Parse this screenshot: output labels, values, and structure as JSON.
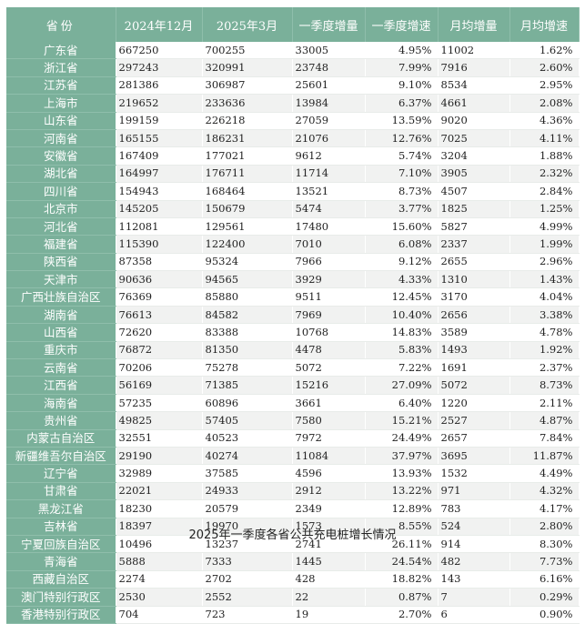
{
  "headers": [
    "省份",
    "2024年12月",
    "2025年3月",
    "一季度增量",
    "一季度增速",
    "月均增量",
    "月均增速"
  ],
  "rows": [
    [
      "广东省",
      "667250",
      "700255",
      "33005",
      "4.95%",
      "11002",
      "1.62%"
    ],
    [
      "浙江省",
      "297243",
      "320991",
      "23748",
      "7.99%",
      "7916",
      "2.60%"
    ],
    [
      "江苏省",
      "281386",
      "306987",
      "25601",
      "9.10%",
      "8534",
      "2.95%"
    ],
    [
      "上海市",
      "219652",
      "233636",
      "13984",
      "6.37%",
      "4661",
      "2.08%"
    ],
    [
      "山东省",
      "199159",
      "226218",
      "27059",
      "13.59%",
      "9020",
      "4.36%"
    ],
    [
      "河南省",
      "165155",
      "186231",
      "21076",
      "12.76%",
      "7025",
      "4.11%"
    ],
    [
      "安徽省",
      "167409",
      "177021",
      "9612",
      "5.74%",
      "3204",
      "1.88%"
    ],
    [
      "湖北省",
      "164997",
      "176711",
      "11714",
      "7.10%",
      "3905",
      "2.32%"
    ],
    [
      "四川省",
      "154943",
      "168464",
      "13521",
      "8.73%",
      "4507",
      "2.84%"
    ],
    [
      "北京市",
      "145205",
      "150679",
      "5474",
      "3.77%",
      "1825",
      "1.25%"
    ],
    [
      "河北省",
      "112081",
      "129561",
      "17480",
      "15.60%",
      "5827",
      "4.99%"
    ],
    [
      "福建省",
      "115390",
      "122400",
      "7010",
      "6.08%",
      "2337",
      "1.99%"
    ],
    [
      "陕西省",
      "87358",
      "95324",
      "7966",
      "9.12%",
      "2655",
      "2.96%"
    ],
    [
      "天津市",
      "90636",
      "94565",
      "3929",
      "4.33%",
      "1310",
      "1.43%"
    ],
    [
      "广西壮族自治区",
      "76369",
      "85880",
      "9511",
      "12.45%",
      "3170",
      "4.04%"
    ],
    [
      "湖南省",
      "76613",
      "84582",
      "7969",
      "10.40%",
      "2656",
      "3.38%"
    ],
    [
      "山西省",
      "72620",
      "83388",
      "10768",
      "14.83%",
      "3589",
      "4.78%"
    ],
    [
      "重庆市",
      "76872",
      "81350",
      "4478",
      "5.83%",
      "1493",
      "1.92%"
    ],
    [
      "云南省",
      "70206",
      "75278",
      "5072",
      "7.22%",
      "1691",
      "2.37%"
    ],
    [
      "江西省",
      "56169",
      "71385",
      "15216",
      "27.09%",
      "5072",
      "8.73%"
    ],
    [
      "海南省",
      "57235",
      "60896",
      "3661",
      "6.40%",
      "1220",
      "2.11%"
    ],
    [
      "贵州省",
      "49825",
      "57405",
      "7580",
      "15.21%",
      "2527",
      "4.87%"
    ],
    [
      "内蒙古自治区",
      "32551",
      "40523",
      "7972",
      "24.49%",
      "2657",
      "7.84%"
    ],
    [
      "新疆维吾尔自治区",
      "29190",
      "40274",
      "11084",
      "37.97%",
      "3695",
      "11.87%"
    ],
    [
      "辽宁省",
      "32989",
      "37585",
      "4596",
      "13.93%",
      "1532",
      "4.49%"
    ],
    [
      "甘肃省",
      "22021",
      "24933",
      "2912",
      "13.22%",
      "971",
      "4.32%"
    ],
    [
      "黑龙江省",
      "18230",
      "20579",
      "2349",
      "12.89%",
      "783",
      "4.17%"
    ],
    [
      "吉林省",
      "18397",
      "19970",
      "1573",
      "8.55%",
      "524",
      "2.80%"
    ],
    [
      "宁夏回族自治区",
      "10496",
      "13237",
      "2741",
      "26.11%",
      "914",
      "8.30%"
    ],
    [
      "青海省",
      "5888",
      "7333",
      "1445",
      "24.54%",
      "482",
      "7.73%"
    ],
    [
      "西藏自治区",
      "2274",
      "2702",
      "428",
      "18.82%",
      "143",
      "6.16%"
    ],
    [
      "澳门特别行政区",
      "2530",
      "2552",
      "22",
      "0.87%",
      "7",
      "0.29%"
    ],
    [
      "香港特别行政区",
      "704",
      "723",
      "19",
      "2.70%",
      "6",
      "0.90%"
    ]
  ],
  "caption": "2025年一季度各省公共充电桩增长情况",
  "colors": {
    "header_bg": "#7ab09a",
    "header_text": "#ffffff",
    "stripe": "#f1f2f1"
  }
}
